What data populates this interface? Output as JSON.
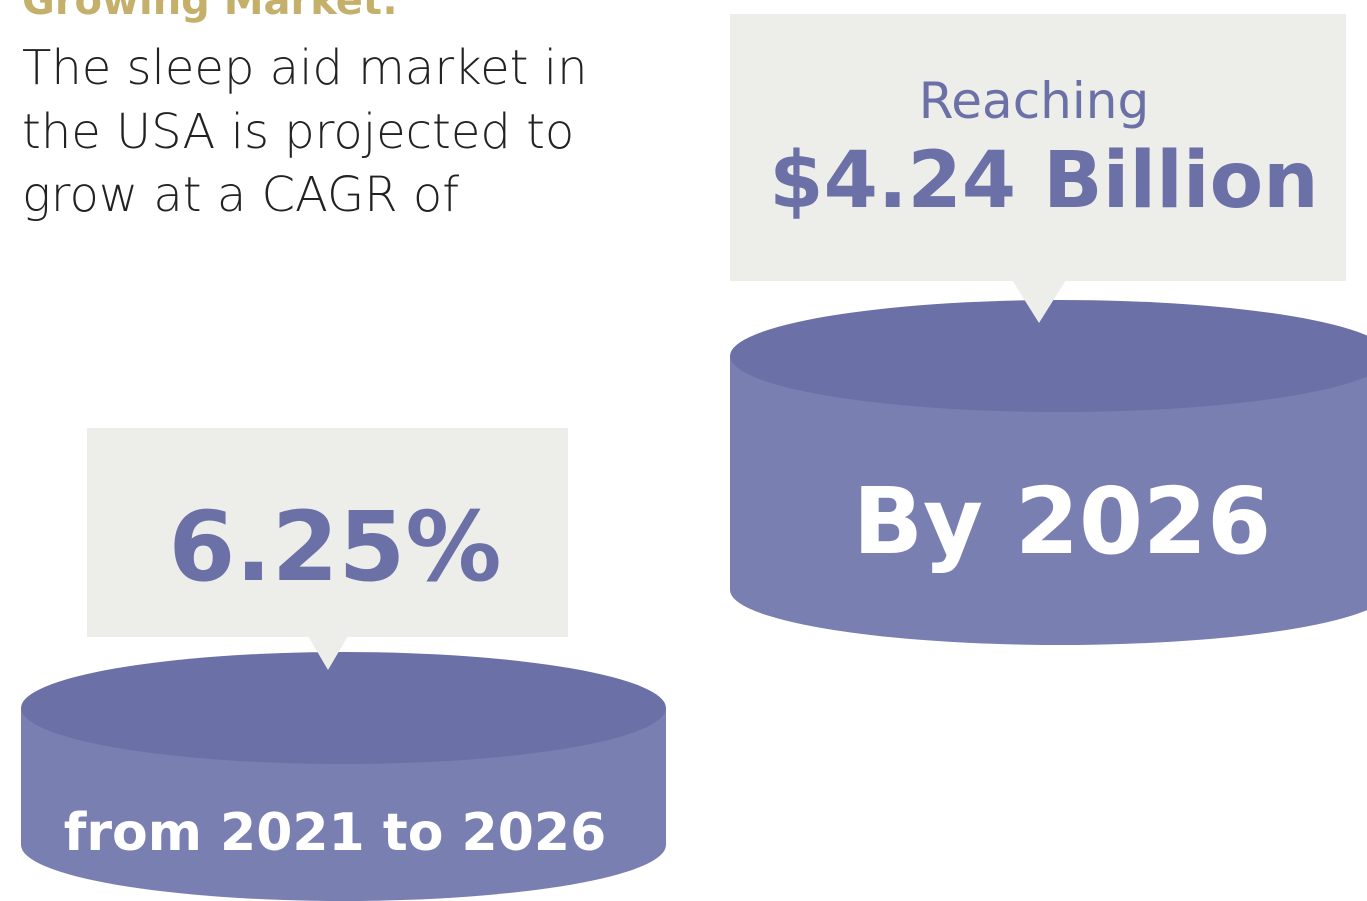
{
  "heading": "Growing Market:",
  "body_lines": [
    "The sleep aid market in",
    "the USA is projected to",
    "grow at a CAGR of"
  ],
  "left_callout": {
    "value_text": "6.25%",
    "base_text": "from 2021 to 2026"
  },
  "right_callout": {
    "intro": "Reaching",
    "value_text": "$4.24 Billion",
    "base_text": "By 2026"
  }
}
